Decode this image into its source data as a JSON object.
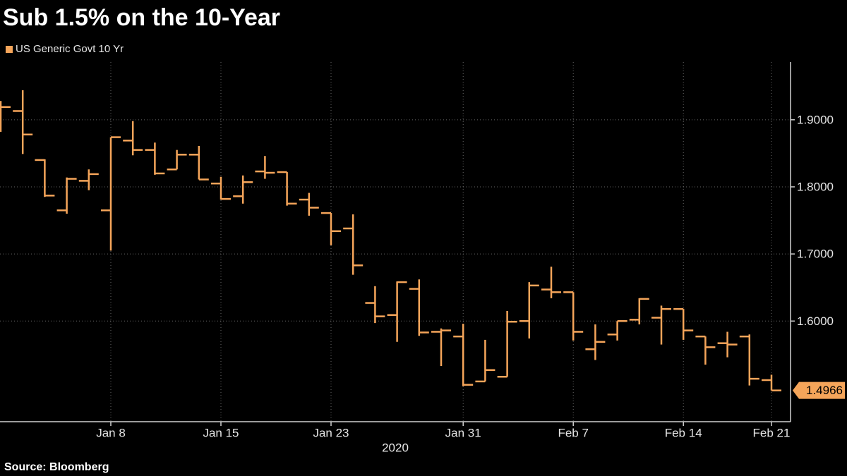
{
  "chart_data": {
    "type": "ohlc",
    "title": "Sub 1.5% on the 10-Year",
    "source": "Source: Bloomberg",
    "xlabel": "2020",
    "categories": [
      null,
      null,
      null,
      null,
      null,
      "Jan 8",
      null,
      null,
      null,
      null,
      "Jan 15",
      null,
      null,
      null,
      null,
      "Jan 23",
      null,
      null,
      null,
      null,
      null,
      "Jan 31",
      null,
      null,
      null,
      null,
      "Feb 7",
      null,
      null,
      null,
      null,
      "Feb 14",
      null,
      null,
      null,
      "Feb 21"
    ],
    "series": [
      {
        "name": "US Generic Govt 10 Yr",
        "color": "#f5a55a",
        "open": [
          1.92,
          1.913,
          1.84,
          1.765,
          1.809,
          1.765,
          1.869,
          1.855,
          1.826,
          1.848,
          1.805,
          1.786,
          1.823,
          1.822,
          1.781,
          1.761,
          1.738,
          1.627,
          1.609,
          1.648,
          1.584,
          1.577,
          1.51,
          1.517,
          1.6,
          1.647,
          1.643,
          1.558,
          1.58,
          1.602,
          1.605,
          1.618,
          1.577,
          1.567,
          1.577,
          1.512
        ],
        "high": [
          1.928,
          1.944,
          1.841,
          1.814,
          1.826,
          1.874,
          1.898,
          1.866,
          1.855,
          1.861,
          1.815,
          1.817,
          1.846,
          1.822,
          1.791,
          1.761,
          1.759,
          1.652,
          1.659,
          1.662,
          1.589,
          1.596,
          1.572,
          1.615,
          1.658,
          1.681,
          1.643,
          1.595,
          1.6,
          1.634,
          1.623,
          1.618,
          1.577,
          1.584,
          1.58,
          1.52
        ],
        "low": [
          1.882,
          1.849,
          1.785,
          1.76,
          1.795,
          1.705,
          1.847,
          1.818,
          1.826,
          1.811,
          1.781,
          1.775,
          1.812,
          1.772,
          1.757,
          1.713,
          1.669,
          1.597,
          1.569,
          1.578,
          1.533,
          1.503,
          1.51,
          1.517,
          1.574,
          1.634,
          1.571,
          1.542,
          1.571,
          1.595,
          1.565,
          1.572,
          1.535,
          1.546,
          1.504,
          1.4966
        ],
        "close": [
          1.919,
          1.878,
          1.787,
          1.812,
          1.819,
          1.874,
          1.855,
          1.82,
          1.848,
          1.811,
          1.782,
          1.807,
          1.821,
          1.775,
          1.769,
          1.734,
          1.683,
          1.607,
          1.658,
          1.583,
          1.586,
          1.505,
          1.527,
          1.599,
          1.653,
          1.643,
          1.584,
          1.569,
          1.6,
          1.633,
          1.618,
          1.586,
          1.561,
          1.565,
          1.514,
          1.4966
        ]
      }
    ],
    "ylim": [
      1.45,
      1.986
    ],
    "yticks": [
      {
        "value": 1.6,
        "label": "1.6000"
      },
      {
        "value": 1.7,
        "label": "1.7000"
      },
      {
        "value": 1.8,
        "label": "1.8000"
      },
      {
        "value": 1.9,
        "label": "1.9000"
      }
    ],
    "grid": true,
    "legend": "top-left"
  }
}
